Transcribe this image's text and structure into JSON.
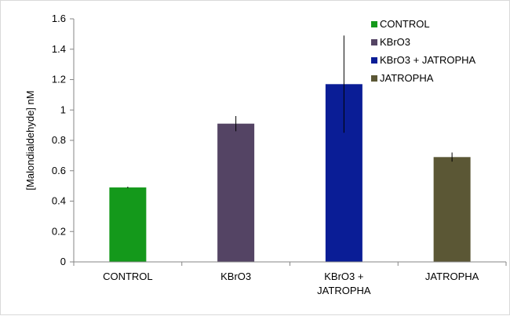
{
  "chart_data": {
    "type": "bar",
    "title": "",
    "xlabel": "",
    "ylabel": "[Malondialdehyde] nM",
    "ylim": [
      0,
      1.6
    ],
    "yticks": [
      "0",
      "0.2",
      "0.4",
      "0.6",
      "0.8",
      "1",
      "1.2",
      "1.4",
      "1.6"
    ],
    "grid": false,
    "legend_position": "top-right",
    "categories": [
      {
        "lines": [
          "CONTROL"
        ]
      },
      {
        "lines": [
          "KBrO3"
        ]
      },
      {
        "lines": [
          "KBrO3 +",
          "JATROPHA"
        ]
      },
      {
        "lines": [
          "JATROPHA"
        ]
      }
    ],
    "values": [
      0.49,
      0.91,
      1.17,
      0.69
    ],
    "error_bars": [
      0.005,
      0.05,
      0.32,
      0.03
    ],
    "colors": [
      "#14991b",
      "#544464",
      "#0a1d96",
      "#5b5735"
    ],
    "legend": [
      "CONTROL",
      "KBrO3",
      "KBrO3 + JATROPHA",
      "JATROPHA"
    ]
  }
}
